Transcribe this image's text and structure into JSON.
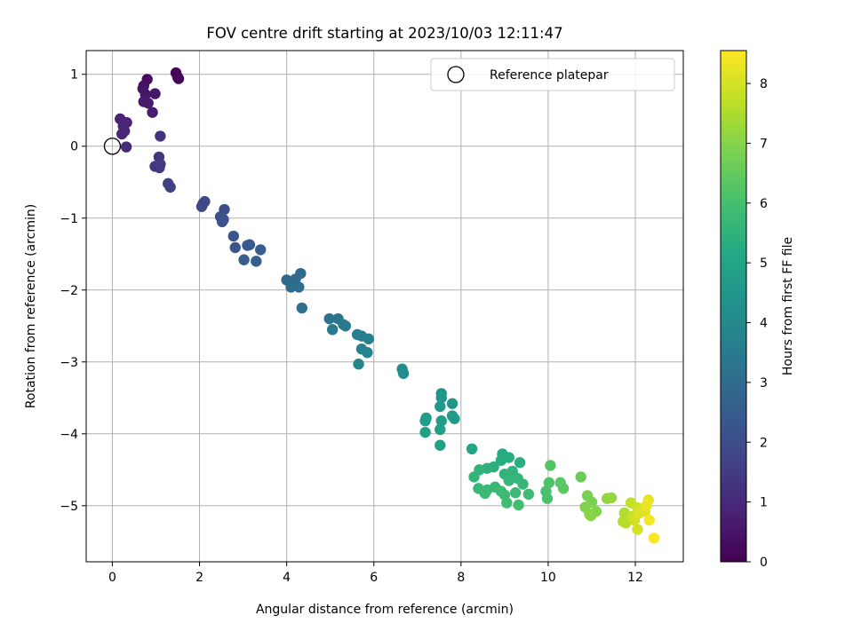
{
  "chart_data": {
    "type": "scatter",
    "title": "FOV centre drift starting at 2023/10/03 12:11:47",
    "xlabel": "Angular distance from reference (arcmin)",
    "ylabel": "Rotation from reference (arcmin)",
    "xlim": [
      -0.6,
      13.1
    ],
    "ylim": [
      -5.78,
      1.33
    ],
    "x_ticks": [
      0,
      2,
      4,
      6,
      8,
      10,
      12
    ],
    "y_ticks": [
      -5,
      -4,
      -3,
      -2,
      -1,
      0,
      1
    ],
    "grid": true,
    "legend": {
      "placement": "top-right",
      "entries": [
        "Reference platepar"
      ]
    },
    "reference_point": {
      "x": 0,
      "y": 0
    },
    "colorbar": {
      "label": "Hours from first FF file",
      "range": [
        0,
        8.55
      ],
      "ticks": [
        0,
        1,
        2,
        3,
        4,
        5,
        6,
        7,
        8
      ],
      "colormap": "viridis"
    },
    "points": [
      {
        "x": 1.46,
        "y": 1.02,
        "h": 0.05
      },
      {
        "x": 1.5,
        "y": 0.96,
        "h": 0.1
      },
      {
        "x": 1.52,
        "y": 0.94,
        "h": 0.15
      },
      {
        "x": 0.8,
        "y": 0.93,
        "h": 0.3
      },
      {
        "x": 0.72,
        "y": 0.84,
        "h": 0.4
      },
      {
        "x": 0.7,
        "y": 0.8,
        "h": 0.45
      },
      {
        "x": 0.76,
        "y": 0.72,
        "h": 0.5
      },
      {
        "x": 0.98,
        "y": 0.73,
        "h": 0.55
      },
      {
        "x": 0.72,
        "y": 0.62,
        "h": 0.6
      },
      {
        "x": 0.82,
        "y": 0.6,
        "h": 0.65
      },
      {
        "x": 0.92,
        "y": 0.47,
        "h": 0.7
      },
      {
        "x": 0.18,
        "y": 0.38,
        "h": 0.8
      },
      {
        "x": 0.33,
        "y": 0.33,
        "h": 0.85
      },
      {
        "x": 0.25,
        "y": 0.28,
        "h": 0.9
      },
      {
        "x": 0.28,
        "y": 0.21,
        "h": 0.95
      },
      {
        "x": 0.22,
        "y": 0.17,
        "h": 1.0
      },
      {
        "x": 0.32,
        "y": -0.01,
        "h": 1.05
      },
      {
        "x": 1.1,
        "y": 0.14,
        "h": 1.2
      },
      {
        "x": 1.07,
        "y": -0.15,
        "h": 1.3
      },
      {
        "x": 0.98,
        "y": -0.28,
        "h": 1.35
      },
      {
        "x": 1.08,
        "y": -0.3,
        "h": 1.4
      },
      {
        "x": 1.1,
        "y": -0.25,
        "h": 1.45
      },
      {
        "x": 1.28,
        "y": -0.52,
        "h": 1.55
      },
      {
        "x": 1.33,
        "y": -0.57,
        "h": 1.6
      },
      {
        "x": 2.08,
        "y": -0.8,
        "h": 1.8
      },
      {
        "x": 2.12,
        "y": -0.77,
        "h": 1.85
      },
      {
        "x": 2.05,
        "y": -0.84,
        "h": 1.9
      },
      {
        "x": 2.57,
        "y": -0.88,
        "h": 2.0
      },
      {
        "x": 2.48,
        "y": -0.98,
        "h": 2.05
      },
      {
        "x": 2.55,
        "y": -1.02,
        "h": 2.1
      },
      {
        "x": 2.52,
        "y": -1.05,
        "h": 2.15
      },
      {
        "x": 2.78,
        "y": -1.25,
        "h": 2.25
      },
      {
        "x": 2.82,
        "y": -1.41,
        "h": 2.3
      },
      {
        "x": 3.1,
        "y": -1.38,
        "h": 2.4
      },
      {
        "x": 3.15,
        "y": -1.37,
        "h": 2.45
      },
      {
        "x": 3.4,
        "y": -1.44,
        "h": 2.5
      },
      {
        "x": 3.02,
        "y": -1.58,
        "h": 2.55
      },
      {
        "x": 3.3,
        "y": -1.6,
        "h": 2.6
      },
      {
        "x": 4.0,
        "y": -1.86,
        "h": 2.85
      },
      {
        "x": 4.2,
        "y": -1.85,
        "h": 2.9
      },
      {
        "x": 4.32,
        "y": -1.77,
        "h": 2.95
      },
      {
        "x": 4.1,
        "y": -1.96,
        "h": 3.0
      },
      {
        "x": 4.28,
        "y": -1.96,
        "h": 3.05
      },
      {
        "x": 4.35,
        "y": -2.25,
        "h": 3.1
      },
      {
        "x": 4.98,
        "y": -2.4,
        "h": 3.3
      },
      {
        "x": 5.18,
        "y": -2.4,
        "h": 3.35
      },
      {
        "x": 5.3,
        "y": -2.48,
        "h": 3.4
      },
      {
        "x": 5.35,
        "y": -2.5,
        "h": 3.45
      },
      {
        "x": 5.05,
        "y": -2.55,
        "h": 3.5
      },
      {
        "x": 5.62,
        "y": -2.62,
        "h": 3.6
      },
      {
        "x": 5.72,
        "y": -2.64,
        "h": 3.65
      },
      {
        "x": 5.88,
        "y": -2.68,
        "h": 3.7
      },
      {
        "x": 5.72,
        "y": -2.82,
        "h": 3.75
      },
      {
        "x": 5.85,
        "y": -2.87,
        "h": 3.8
      },
      {
        "x": 5.65,
        "y": -3.03,
        "h": 3.85
      },
      {
        "x": 6.65,
        "y": -3.1,
        "h": 4.1
      },
      {
        "x": 6.68,
        "y": -3.16,
        "h": 4.15
      },
      {
        "x": 7.55,
        "y": -3.44,
        "h": 4.4
      },
      {
        "x": 7.55,
        "y": -3.5,
        "h": 4.45
      },
      {
        "x": 7.8,
        "y": -3.58,
        "h": 4.5
      },
      {
        "x": 7.52,
        "y": -3.62,
        "h": 4.55
      },
      {
        "x": 7.8,
        "y": -3.75,
        "h": 4.6
      },
      {
        "x": 7.85,
        "y": -3.79,
        "h": 4.65
      },
      {
        "x": 7.2,
        "y": -3.78,
        "h": 4.7
      },
      {
        "x": 7.18,
        "y": -3.82,
        "h": 4.72
      },
      {
        "x": 7.55,
        "y": -3.82,
        "h": 4.75
      },
      {
        "x": 7.52,
        "y": -3.94,
        "h": 4.8
      },
      {
        "x": 7.18,
        "y": -3.98,
        "h": 4.82
      },
      {
        "x": 7.52,
        "y": -4.16,
        "h": 4.85
      },
      {
        "x": 8.25,
        "y": -4.21,
        "h": 5.1
      },
      {
        "x": 8.95,
        "y": -4.28,
        "h": 5.2
      },
      {
        "x": 9.1,
        "y": -4.33,
        "h": 5.25
      },
      {
        "x": 8.92,
        "y": -4.37,
        "h": 5.3
      },
      {
        "x": 9.35,
        "y": -4.4,
        "h": 5.35
      },
      {
        "x": 8.75,
        "y": -4.46,
        "h": 5.4
      },
      {
        "x": 8.6,
        "y": -4.48,
        "h": 5.45
      },
      {
        "x": 8.42,
        "y": -4.5,
        "h": 5.5
      },
      {
        "x": 9.18,
        "y": -4.52,
        "h": 5.52
      },
      {
        "x": 9.0,
        "y": -4.56,
        "h": 5.55
      },
      {
        "x": 8.3,
        "y": -4.6,
        "h": 5.58
      },
      {
        "x": 9.3,
        "y": -4.62,
        "h": 5.6
      },
      {
        "x": 9.1,
        "y": -4.65,
        "h": 5.62
      },
      {
        "x": 9.42,
        "y": -4.7,
        "h": 5.65
      },
      {
        "x": 8.78,
        "y": -4.74,
        "h": 5.68
      },
      {
        "x": 8.4,
        "y": -4.76,
        "h": 5.7
      },
      {
        "x": 8.6,
        "y": -4.78,
        "h": 5.72
      },
      {
        "x": 8.92,
        "y": -4.8,
        "h": 5.75
      },
      {
        "x": 9.25,
        "y": -4.82,
        "h": 5.78
      },
      {
        "x": 8.55,
        "y": -4.83,
        "h": 5.8
      },
      {
        "x": 9.0,
        "y": -4.85,
        "h": 5.82
      },
      {
        "x": 9.55,
        "y": -4.84,
        "h": 5.85
      },
      {
        "x": 9.05,
        "y": -4.96,
        "h": 5.88
      },
      {
        "x": 9.32,
        "y": -4.99,
        "h": 5.9
      },
      {
        "x": 9.95,
        "y": -4.8,
        "h": 6.05
      },
      {
        "x": 9.98,
        "y": -4.9,
        "h": 6.1
      },
      {
        "x": 10.02,
        "y": -4.68,
        "h": 6.15
      },
      {
        "x": 10.05,
        "y": -4.44,
        "h": 6.2
      },
      {
        "x": 10.28,
        "y": -4.68,
        "h": 6.3
      },
      {
        "x": 10.35,
        "y": -4.76,
        "h": 6.35
      },
      {
        "x": 10.75,
        "y": -4.6,
        "h": 6.6
      },
      {
        "x": 10.9,
        "y": -4.86,
        "h": 6.8
      },
      {
        "x": 11.0,
        "y": -4.95,
        "h": 6.85
      },
      {
        "x": 10.85,
        "y": -5.02,
        "h": 6.9
      },
      {
        "x": 11.1,
        "y": -5.08,
        "h": 6.95
      },
      {
        "x": 10.95,
        "y": -5.12,
        "h": 7.0
      },
      {
        "x": 10.98,
        "y": -5.14,
        "h": 7.05
      },
      {
        "x": 11.35,
        "y": -4.9,
        "h": 7.15
      },
      {
        "x": 11.45,
        "y": -4.89,
        "h": 7.2
      },
      {
        "x": 11.75,
        "y": -5.1,
        "h": 7.5
      },
      {
        "x": 11.72,
        "y": -5.22,
        "h": 7.55
      },
      {
        "x": 11.78,
        "y": -5.24,
        "h": 7.6
      },
      {
        "x": 11.9,
        "y": -4.96,
        "h": 7.75
      },
      {
        "x": 11.92,
        "y": -5.15,
        "h": 7.8
      },
      {
        "x": 12.05,
        "y": -5.03,
        "h": 7.9
      },
      {
        "x": 11.98,
        "y": -5.2,
        "h": 7.95
      },
      {
        "x": 12.05,
        "y": -5.33,
        "h": 8.0
      },
      {
        "x": 12.1,
        "y": -5.1,
        "h": 8.1
      },
      {
        "x": 12.22,
        "y": -5.08,
        "h": 8.15
      },
      {
        "x": 12.3,
        "y": -4.92,
        "h": 8.25
      },
      {
        "x": 12.25,
        "y": -5.0,
        "h": 8.3
      },
      {
        "x": 12.32,
        "y": -5.2,
        "h": 8.4
      },
      {
        "x": 12.43,
        "y": -5.45,
        "h": 8.5
      }
    ]
  }
}
